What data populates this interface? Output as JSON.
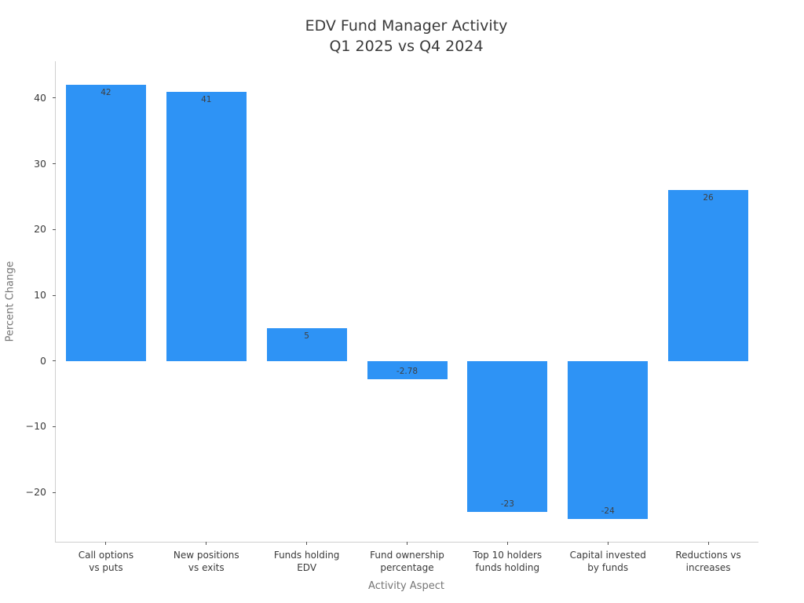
{
  "title": {
    "line1": "EDV Fund Manager Activity",
    "line2": "Q1 2025 vs Q4 2024"
  },
  "chart_data": {
    "type": "bar",
    "title": "EDV Fund Manager Activity\nQ1 2025 vs Q4 2024",
    "xlabel": "Activity Aspect",
    "ylabel": "Percent Change",
    "categories": [
      "Call options\nvs puts",
      "New positions\nvs exits",
      "Funds holding\nEDV",
      "Fund ownership\npercentage",
      "Top 10 holders\nfunds holding",
      "Capital invested\nby funds",
      "Reductions vs\nincreases"
    ],
    "values": [
      42,
      41,
      5,
      -2.78,
      -23,
      -24,
      26
    ],
    "bar_labels": [
      "42",
      "41",
      "5",
      "-2.78",
      "-23",
      "-24",
      "26"
    ],
    "yticks": [
      40,
      30,
      20,
      10,
      0,
      -10,
      -20
    ],
    "ytick_labels": [
      "40",
      "30",
      "20",
      "10",
      "0",
      "−10",
      "−20"
    ],
    "ylim": [
      -27.5,
      45.6
    ],
    "bar_color": "#2E93F5",
    "grid": false,
    "legend": false,
    "background": "#FFFFFF"
  },
  "colors": {
    "bar": "#2E93F5",
    "spine": "#CFCFCF",
    "tick_mark": "#555555",
    "tick_label": "#3A3A3A",
    "axis_title": "#757575",
    "chart_title": "#3A3A3A",
    "value_label": "#3F3F3F"
  }
}
